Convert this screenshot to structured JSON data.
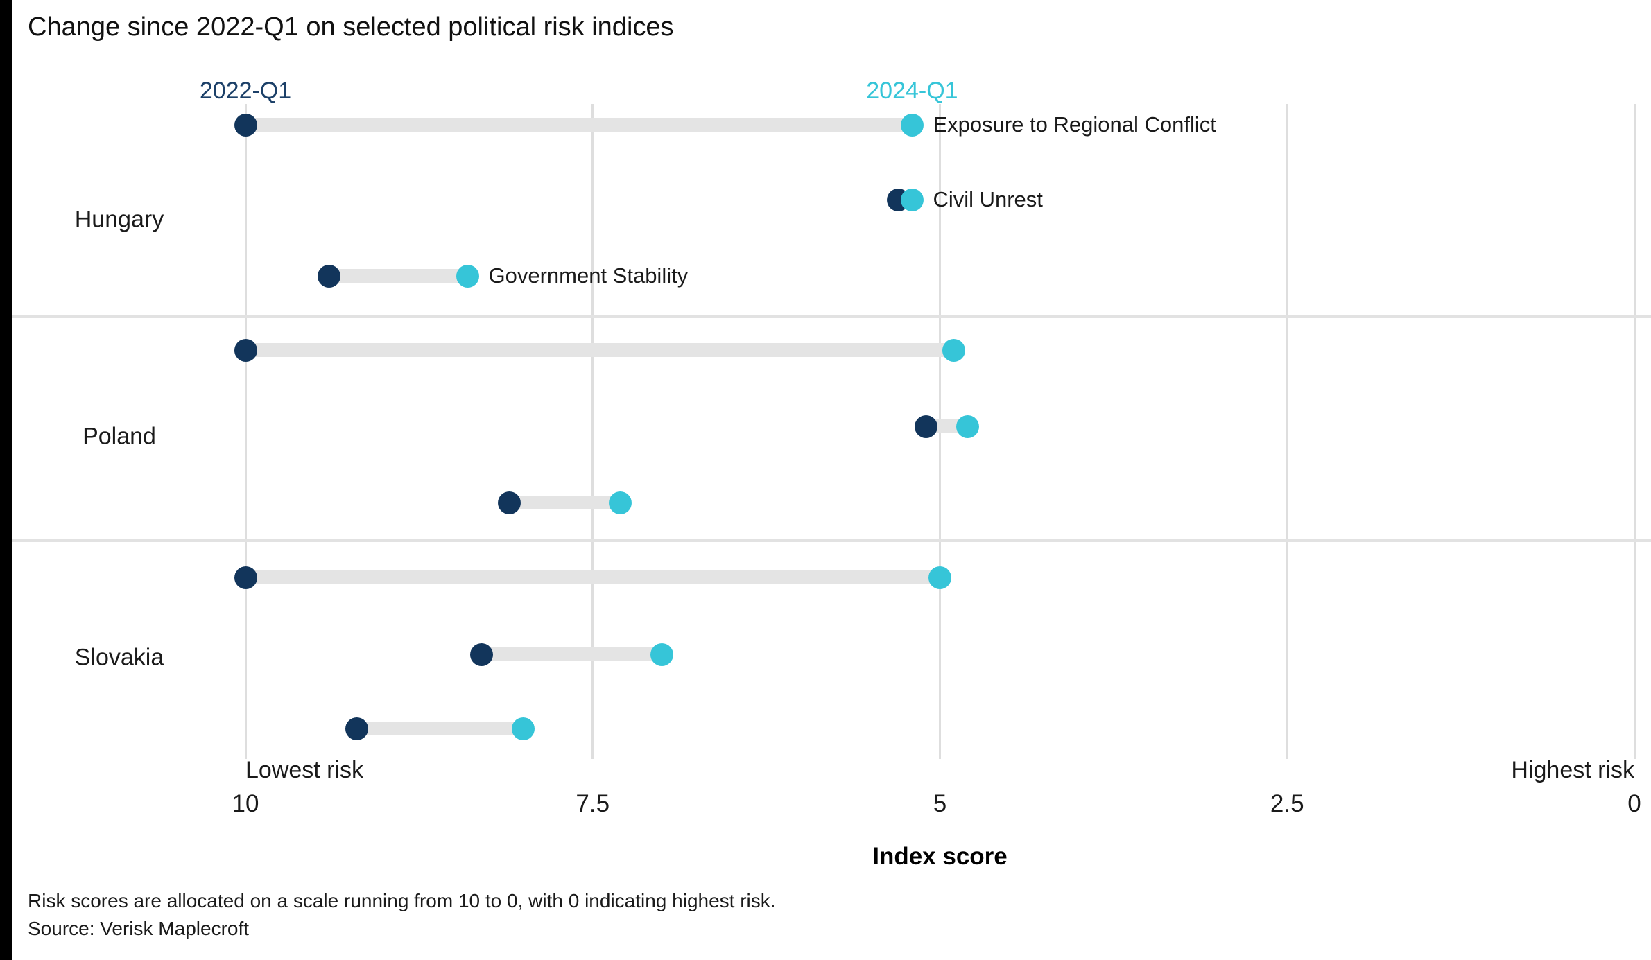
{
  "title": "Change since 2022-Q1 on selected political risk indices",
  "legend": {
    "start_label": "2022-Q1",
    "end_label": "2024-Q1"
  },
  "colors": {
    "start_dot": "#12355b",
    "end_dot": "#36c5d8",
    "start_text": "#1c4068",
    "end_text": "#36c5d8",
    "connector": "#e4e4e4",
    "gridline": "#dedede"
  },
  "axis": {
    "title": "Index score",
    "left_label": "Lowest risk",
    "right_label": "Highest risk",
    "ticks": [
      "10",
      "7.5",
      "5",
      "2.5",
      "0"
    ],
    "tick_values": [
      10,
      7.5,
      5,
      2.5,
      0
    ],
    "domain": [
      10,
      0
    ]
  },
  "footnotes": [
    "Risk scores are allocated on a scale running from 10 to 0, with 0 indicating highest risk.",
    "Source: Verisk Maplecroft"
  ],
  "chart_data": {
    "type": "scatter",
    "variant": "dumbbell",
    "series": [
      {
        "name": "2022-Q1",
        "color": "#12355b"
      },
      {
        "name": "2024-Q1",
        "color": "#36c5d8"
      }
    ],
    "xlabel": "Index score",
    "xlim": [
      10,
      0
    ],
    "grid": true,
    "groups": [
      {
        "country": "Hungary",
        "rows": [
          {
            "label": "Exposure to Regional Conflict",
            "show_label": true,
            "q1_2022": 10.0,
            "q1_2024": 5.2
          },
          {
            "label": "Civil Unrest",
            "show_label": true,
            "q1_2022": 5.3,
            "q1_2024": 5.2
          },
          {
            "label": "Government Stability",
            "show_label": true,
            "q1_2022": 9.4,
            "q1_2024": 8.4
          }
        ]
      },
      {
        "country": "Poland",
        "rows": [
          {
            "label": "Exposure to Regional Conflict",
            "show_label": false,
            "q1_2022": 10.0,
            "q1_2024": 4.9
          },
          {
            "label": "Civil Unrest",
            "show_label": false,
            "q1_2022": 5.1,
            "q1_2024": 4.8
          },
          {
            "label": "Government Stability",
            "show_label": false,
            "q1_2022": 8.1,
            "q1_2024": 7.3
          }
        ]
      },
      {
        "country": "Slovakia",
        "rows": [
          {
            "label": "Exposure to Regional Conflict",
            "show_label": false,
            "q1_2022": 10.0,
            "q1_2024": 5.0
          },
          {
            "label": "Civil Unrest",
            "show_label": false,
            "q1_2022": 8.3,
            "q1_2024": 7.0
          },
          {
            "label": "Government Stability",
            "show_label": false,
            "q1_2022": 9.2,
            "q1_2024": 8.0
          }
        ]
      }
    ]
  }
}
